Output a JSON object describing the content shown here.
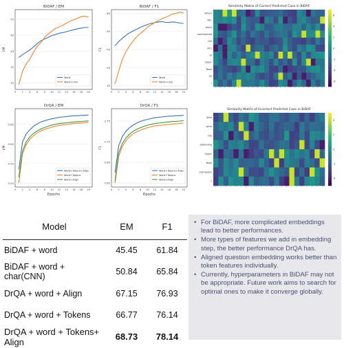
{
  "charts": [
    {
      "id": "bidaf-em",
      "chart_data": {
        "type": "line",
        "title": "BiDAF / EM",
        "ylabel": "EM",
        "xlabel": "",
        "x": [
          1,
          2,
          3,
          4,
          5,
          6,
          7,
          8,
          9,
          10,
          11,
          12,
          13,
          14,
          15,
          16,
          17,
          18,
          19,
          20
        ],
        "ylim": [
          28,
          53
        ],
        "xticks": [
          0,
          2,
          4,
          6,
          8,
          10,
          12,
          14,
          16,
          18,
          20
        ],
        "yticks": [
          30,
          35,
          40,
          45,
          50
        ],
        "legend": "bottom-right",
        "series": [
          {
            "name": "Word",
            "color": "#3a6fbf",
            "values": [
              38,
              38.9,
              39.6,
              40.4,
              41.3,
              42.3,
              43.2,
              43.8,
              44.3,
              44.9,
              45.2,
              45.6,
              45.8,
              46.1,
              46.4,
              46.7,
              47.0,
              47.2,
              47.4,
              47.4
            ]
          },
          {
            "name": "Word+Char",
            "color": "#f0832a",
            "values": [
              29.5,
              33.6,
              36.0,
              37.5,
              39.6,
              41.5,
              42.6,
              44.3,
              45.3,
              46.3,
              47.1,
              47.6,
              48.1,
              48.8,
              49.4,
              49.8,
              50.3,
              50.8,
              50.9,
              50.7
            ]
          }
        ]
      }
    },
    {
      "id": "bidaf-f1",
      "chart_data": {
        "type": "line",
        "title": "BiDAF / F1",
        "ylabel": "F1",
        "xlabel": "",
        "x": [
          1,
          2,
          3,
          4,
          5,
          6,
          7,
          8,
          9,
          10,
          11,
          12,
          13,
          14,
          15,
          16,
          17,
          18,
          19,
          20
        ],
        "ylim": [
          44,
          66
        ],
        "xticks": [
          0,
          2,
          4,
          6,
          8,
          10,
          12,
          14,
          16,
          18,
          20
        ],
        "yticks": [
          45,
          50,
          55,
          60,
          65
        ],
        "legend": "bottom-right",
        "series": [
          {
            "name": "Word",
            "color": "#3a6fbf",
            "values": [
              56.0,
              57.2,
              58.1,
              58.9,
              59.6,
              60.1,
              60.6,
              61.1,
              61.5,
              61.9,
              62.2,
              62.4,
              62.6,
              62.7,
              62.5,
              62.5,
              62.6,
              62.5,
              62.3,
              62.2
            ]
          },
          {
            "name": "Word+Char",
            "color": "#f0832a",
            "values": [
              45.5,
              49.0,
              52.2,
              54.4,
              56.0,
              57.3,
              58.5,
              59.4,
              60.2,
              61.2,
              61.8,
              62.4,
              63.0,
              63.5,
              63.9,
              64.3,
              64.8,
              65.0,
              65.3,
              65.1
            ]
          }
        ]
      }
    },
    {
      "id": "drqa-em",
      "chart_data": {
        "type": "line",
        "title": "DrQA / EM",
        "ylabel": "EM",
        "xlabel": "Epochs",
        "x": [
          1,
          2,
          3,
          4,
          5,
          6,
          7,
          8,
          9,
          10,
          11,
          12,
          13,
          14,
          15,
          16,
          17,
          18,
          19,
          20
        ],
        "ylim": [
          0.49,
          0.69
        ],
        "xticks": [
          0,
          2,
          4,
          6,
          8,
          10,
          12,
          14,
          16,
          18,
          20
        ],
        "yticks": [
          0.5,
          0.55,
          0.6,
          0.65
        ],
        "legend": "bottom-right",
        "series": [
          {
            "name": "Word+Tokens+Align",
            "color": "#3a6fbf",
            "values": [
              0.535,
              0.605,
              0.625,
              0.636,
              0.645,
              0.651,
              0.656,
              0.659,
              0.662,
              0.664,
              0.666,
              0.668,
              0.669,
              0.67,
              0.671,
              0.672,
              0.672,
              0.673,
              0.673,
              0.674
            ]
          },
          {
            "name": "Word+Tokens",
            "color": "#f0832a",
            "values": [
              0.5,
              0.575,
              0.598,
              0.612,
              0.621,
              0.628,
              0.633,
              0.637,
              0.64,
              0.643,
              0.645,
              0.647,
              0.649,
              0.65,
              0.651,
              0.652,
              0.653,
              0.653,
              0.654,
              0.655
            ]
          },
          {
            "name": "Word+Align",
            "color": "#3d9a3d",
            "values": [
              0.515,
              0.582,
              0.605,
              0.618,
              0.627,
              0.633,
              0.638,
              0.642,
              0.645,
              0.648,
              0.65,
              0.652,
              0.653,
              0.654,
              0.655,
              0.656,
              0.657,
              0.657,
              0.658,
              0.659
            ]
          }
        ]
      }
    },
    {
      "id": "drqa-f1",
      "chart_data": {
        "type": "line",
        "title": "DrQA / F1",
        "ylabel": "F1",
        "xlabel": "Epochs",
        "x": [
          1,
          2,
          3,
          4,
          5,
          6,
          7,
          8,
          9,
          10,
          11,
          12,
          13,
          14,
          15,
          16,
          17,
          18,
          19,
          20
        ],
        "ylim": [
          0.59,
          0.78
        ],
        "xticks": [
          0,
          2,
          4,
          6,
          8,
          10,
          12,
          14,
          16,
          18,
          20
        ],
        "yticks": [
          0.6,
          0.65,
          0.7,
          0.75
        ],
        "legend": "bottom-right",
        "series": [
          {
            "name": "Word+Tokens+Align",
            "color": "#3a6fbf",
            "values": [
              0.625,
              0.69,
              0.712,
              0.725,
              0.734,
              0.74,
              0.745,
              0.749,
              0.752,
              0.754,
              0.756,
              0.758,
              0.759,
              0.76,
              0.761,
              0.762,
              0.762,
              0.763,
              0.763,
              0.764
            ]
          },
          {
            "name": "Word+Tokens",
            "color": "#f0832a",
            "values": [
              0.6,
              0.664,
              0.688,
              0.702,
              0.712,
              0.719,
              0.724,
              0.728,
              0.731,
              0.734,
              0.736,
              0.738,
              0.739,
              0.74,
              0.741,
              0.742,
              0.743,
              0.743,
              0.744,
              0.745
            ]
          },
          {
            "name": "Word+Align",
            "color": "#3d9a3d",
            "values": [
              0.605,
              0.672,
              0.695,
              0.709,
              0.718,
              0.725,
              0.73,
              0.734,
              0.737,
              0.74,
              0.742,
              0.744,
              0.745,
              0.746,
              0.747,
              0.748,
              0.749,
              0.749,
              0.75,
              0.751
            ]
          }
        ]
      }
    },
    {
      "id": "heatmap-correct",
      "chart_data": {
        "type": "heatmap",
        "title": "Similarity Matrix of Correct Predicted Case in BiDAF",
        "rows": [
          "Which",
          "NFL",
          "team",
          "represented",
          "the",
          "AFC",
          "at",
          "Super",
          "Bowl",
          "50",
          "?"
        ],
        "cols": 24,
        "colorbar_ticks": [
          6,
          4,
          2,
          0,
          -2,
          -4,
          -6
        ],
        "colormap": "viridis",
        "vmin": -7,
        "vmax": 7
      }
    },
    {
      "id": "heatmap-incorrect",
      "chart_data": {
        "type": "heatmap",
        "title": "Similarity Matrix of Incorrect Predicted Case in BiDAF",
        "rows": [
          "Who",
          "were",
          "the",
          "defending",
          "Super",
          "Bowl",
          "champions",
          "?"
        ],
        "cols": 22,
        "colorbar_ticks": [
          4,
          2,
          0,
          -2,
          -4
        ],
        "colormap": "viridis",
        "vmin": -5,
        "vmax": 5
      }
    }
  ],
  "table": {
    "headers": [
      "Model",
      "EM",
      "F1"
    ],
    "rows": [
      {
        "model": "BiDAF + word",
        "em": "45.45",
        "f1": "61.84"
      },
      {
        "model": "BiDAF + word + char(CNN)",
        "em": "50.84",
        "f1": "65.84"
      },
      {
        "model": "DrQA + word + Align",
        "em": "67.15",
        "f1": "76.93"
      },
      {
        "model": "DrQA + word + Tokens",
        "em": "66.77",
        "f1": "76.14"
      },
      {
        "model": "DrQA + word + Tokens+ Align",
        "em": "68.73",
        "f1": "78.14"
      }
    ]
  },
  "bullets": [
    "For BiDAF, more complicated embeddings lead to better performances.",
    "More types of features we add in embedding step, the better performance DrQA has.",
    "Aligned question embedding works better than token features individually.",
    "Currently, hyperparameters in BiDAF may not be appropriate. Future work aims to search for optimal ones to make it converge globally."
  ]
}
